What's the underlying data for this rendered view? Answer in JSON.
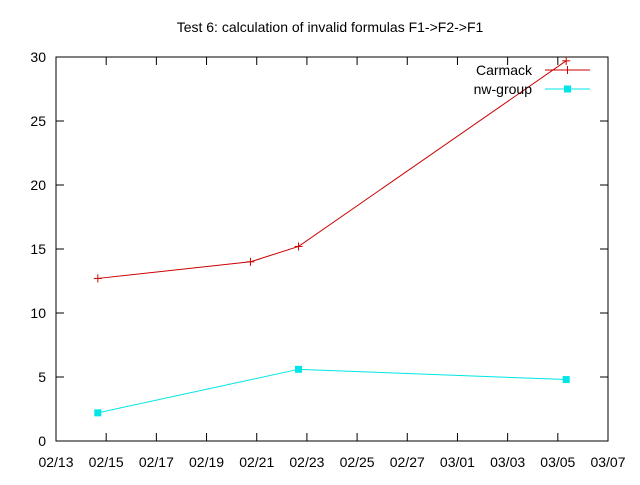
{
  "chart_data": {
    "type": "line",
    "title": "Test 6: calculation of invalid formulas F1->F2->F1",
    "xlabel": "",
    "ylabel": "",
    "xlim": [
      "2013-02-13",
      "2013-03-07"
    ],
    "ylim": [
      0,
      30
    ],
    "x_ticks": [
      "02/13",
      "02/15",
      "02/17",
      "02/19",
      "02/21",
      "02/23",
      "02/25",
      "02/27",
      "03/01",
      "03/03",
      "03/05",
      "03/07"
    ],
    "y_ticks": [
      0,
      5,
      10,
      15,
      20,
      25,
      30
    ],
    "grid": false,
    "legend_position": "top-right",
    "series": [
      {
        "name": "Carmack",
        "color": "#cc0000",
        "marker": "plus",
        "points": [
          {
            "x": "2013-02-14 16:00",
            "y": 12.7
          },
          {
            "x": "2013-02-20 18:00",
            "y": 14.0
          },
          {
            "x": "2013-02-22 16:00",
            "y": 15.2
          },
          {
            "x": "2013-03-05 08:00",
            "y": 29.7
          }
        ]
      },
      {
        "name": "nw-group",
        "color": "#00e5e5",
        "marker": "square",
        "points": [
          {
            "x": "2013-02-14 16:00",
            "y": 2.2
          },
          {
            "x": "2013-02-22 16:00",
            "y": 5.6
          },
          {
            "x": "2013-03-05 08:00",
            "y": 4.8
          }
        ]
      }
    ]
  }
}
